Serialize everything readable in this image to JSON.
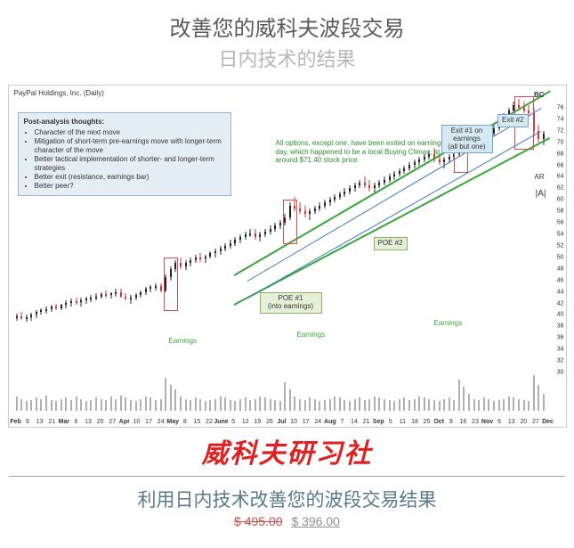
{
  "header": {
    "title": "改善您的威科夫波段交易",
    "subtitle": "日内技术的结果"
  },
  "chart": {
    "title_tl": "PayPal Holdings, Inc. (Daily)",
    "y_ticks": [
      30,
      32,
      34,
      36,
      38,
      40,
      42,
      44,
      46,
      48,
      50,
      52,
      54,
      56,
      58,
      60,
      62,
      64,
      66,
      68,
      70,
      72,
      74,
      76
    ],
    "y_min": 30,
    "y_max": 78,
    "x_labels": [
      "Feb",
      "6",
      "13",
      "21",
      "Mar",
      "6",
      "13",
      "20",
      "27",
      "Apr",
      "10",
      "17",
      "24",
      "May",
      "8",
      "15",
      "22",
      "June",
      "5",
      "12",
      "19",
      "26",
      "Jul",
      "10",
      "17",
      "24",
      "Aug",
      "7",
      "14",
      "21",
      "Sep",
      "5",
      "11",
      "18",
      "25",
      "Oct",
      "9",
      "16",
      "23",
      "Nov",
      "6",
      "13",
      "20",
      "27",
      "Dec"
    ],
    "background_color": "#ffffff",
    "grid_color": "#e8e8e8",
    "candle_up_color": "#222222",
    "candle_down_color": "#cc3333",
    "volume_color": "#b0b0b0",
    "channel_color_green": "#39a639",
    "channel_color_blue": "#3a78c9",
    "rect_color_red": "#d94c4c",
    "candles": [
      {
        "x": 0.5,
        "o": 39.5,
        "h": 40.2,
        "l": 39.0,
        "c": 39.8
      },
      {
        "x": 1.5,
        "o": 39.8,
        "h": 40.5,
        "l": 39.2,
        "c": 39.4
      },
      {
        "x": 2.5,
        "o": 39.4,
        "h": 40.0,
        "l": 38.8,
        "c": 39.6
      },
      {
        "x": 3.5,
        "o": 39.6,
        "h": 40.3,
        "l": 39.0,
        "c": 40.0
      },
      {
        "x": 4.5,
        "o": 40.0,
        "h": 40.8,
        "l": 39.5,
        "c": 40.5
      },
      {
        "x": 5.5,
        "o": 40.5,
        "h": 41.2,
        "l": 40.0,
        "c": 40.8
      },
      {
        "x": 6.5,
        "o": 40.8,
        "h": 41.5,
        "l": 40.2,
        "c": 41.0
      },
      {
        "x": 7.5,
        "o": 41.0,
        "h": 41.8,
        "l": 40.5,
        "c": 41.5
      },
      {
        "x": 8.5,
        "o": 41.5,
        "h": 42.0,
        "l": 40.8,
        "c": 41.2
      },
      {
        "x": 9.5,
        "o": 41.2,
        "h": 42.0,
        "l": 40.8,
        "c": 41.8
      },
      {
        "x": 10.5,
        "o": 41.8,
        "h": 42.5,
        "l": 41.2,
        "c": 42.0
      },
      {
        "x": 11.5,
        "o": 42.0,
        "h": 42.8,
        "l": 41.5,
        "c": 42.4
      },
      {
        "x": 12.5,
        "o": 42.4,
        "h": 43.0,
        "l": 41.8,
        "c": 42.2
      },
      {
        "x": 13.5,
        "o": 42.2,
        "h": 43.0,
        "l": 41.5,
        "c": 42.6
      },
      {
        "x": 14.5,
        "o": 42.6,
        "h": 43.2,
        "l": 42.0,
        "c": 42.8
      },
      {
        "x": 15.5,
        "o": 42.8,
        "h": 43.5,
        "l": 42.2,
        "c": 43.0
      },
      {
        "x": 16.5,
        "o": 43.0,
        "h": 43.8,
        "l": 42.5,
        "c": 43.2
      },
      {
        "x": 17.5,
        "o": 43.2,
        "h": 44.0,
        "l": 42.8,
        "c": 43.6
      },
      {
        "x": 18.5,
        "o": 43.6,
        "h": 44.2,
        "l": 43.0,
        "c": 43.4
      },
      {
        "x": 19.5,
        "o": 43.4,
        "h": 44.0,
        "l": 42.8,
        "c": 43.8
      },
      {
        "x": 20.5,
        "o": 43.8,
        "h": 44.5,
        "l": 43.2,
        "c": 44.0
      },
      {
        "x": 21.5,
        "o": 44.0,
        "h": 44.5,
        "l": 43.0,
        "c": 43.2
      },
      {
        "x": 22.5,
        "o": 43.2,
        "h": 43.8,
        "l": 42.5,
        "c": 42.8
      },
      {
        "x": 23.5,
        "o": 42.8,
        "h": 43.5,
        "l": 42.0,
        "c": 43.0
      },
      {
        "x": 24.5,
        "o": 43.0,
        "h": 43.8,
        "l": 42.5,
        "c": 43.5
      },
      {
        "x": 25.5,
        "o": 43.5,
        "h": 44.2,
        "l": 43.0,
        "c": 44.0
      },
      {
        "x": 26.5,
        "o": 44.0,
        "h": 44.8,
        "l": 43.5,
        "c": 44.5
      },
      {
        "x": 27.5,
        "o": 44.5,
        "h": 45.2,
        "l": 44.0,
        "c": 44.8
      },
      {
        "x": 28.5,
        "o": 44.8,
        "h": 45.5,
        "l": 44.2,
        "c": 45.0
      },
      {
        "x": 29.5,
        "o": 45.0,
        "h": 45.5,
        "l": 44.0,
        "c": 44.2
      },
      {
        "x": 30.5,
        "o": 44.2,
        "h": 47.0,
        "l": 44.0,
        "c": 46.5
      },
      {
        "x": 31.5,
        "o": 46.5,
        "h": 48.5,
        "l": 46.0,
        "c": 48.0
      },
      {
        "x": 32.5,
        "o": 48.0,
        "h": 49.5,
        "l": 47.5,
        "c": 49.0
      },
      {
        "x": 33.5,
        "o": 49.0,
        "h": 50.0,
        "l": 48.0,
        "c": 48.5
      },
      {
        "x": 34.5,
        "o": 48.5,
        "h": 49.5,
        "l": 47.8,
        "c": 49.0
      },
      {
        "x": 35.5,
        "o": 49.0,
        "h": 50.0,
        "l": 48.5,
        "c": 49.5
      },
      {
        "x": 36.5,
        "o": 49.5,
        "h": 50.5,
        "l": 49.0,
        "c": 50.0
      },
      {
        "x": 37.5,
        "o": 50.0,
        "h": 50.8,
        "l": 49.2,
        "c": 49.8
      },
      {
        "x": 38.5,
        "o": 49.8,
        "h": 50.5,
        "l": 49.0,
        "c": 50.2
      },
      {
        "x": 39.5,
        "o": 50.2,
        "h": 51.0,
        "l": 49.8,
        "c": 50.8
      },
      {
        "x": 40.5,
        "o": 50.8,
        "h": 51.5,
        "l": 50.0,
        "c": 51.0
      },
      {
        "x": 41.5,
        "o": 51.0,
        "h": 52.0,
        "l": 50.5,
        "c": 51.5
      },
      {
        "x": 42.5,
        "o": 51.5,
        "h": 52.5,
        "l": 51.0,
        "c": 52.0
      },
      {
        "x": 43.5,
        "o": 52.0,
        "h": 53.0,
        "l": 51.5,
        "c": 52.5
      },
      {
        "x": 44.5,
        "o": 52.5,
        "h": 53.5,
        "l": 52.0,
        "c": 53.0
      },
      {
        "x": 45.5,
        "o": 53.0,
        "h": 54.0,
        "l": 52.5,
        "c": 53.5
      },
      {
        "x": 46.5,
        "o": 53.5,
        "h": 54.5,
        "l": 53.0,
        "c": 54.0
      },
      {
        "x": 47.5,
        "o": 54.0,
        "h": 55.0,
        "l": 53.5,
        "c": 54.2
      },
      {
        "x": 48.5,
        "o": 54.2,
        "h": 55.0,
        "l": 53.0,
        "c": 53.5
      },
      {
        "x": 49.5,
        "o": 53.5,
        "h": 54.5,
        "l": 52.8,
        "c": 54.0
      },
      {
        "x": 50.5,
        "o": 54.0,
        "h": 55.0,
        "l": 53.5,
        "c": 54.5
      },
      {
        "x": 51.5,
        "o": 54.5,
        "h": 55.5,
        "l": 54.0,
        "c": 55.0
      },
      {
        "x": 52.5,
        "o": 55.0,
        "h": 56.0,
        "l": 54.5,
        "c": 55.5
      },
      {
        "x": 53.5,
        "o": 55.5,
        "h": 56.5,
        "l": 55.0,
        "c": 56.0
      },
      {
        "x": 54.5,
        "o": 56.0,
        "h": 57.5,
        "l": 55.5,
        "c": 57.0
      },
      {
        "x": 55.5,
        "o": 57.0,
        "h": 59.5,
        "l": 56.5,
        "c": 59.0
      },
      {
        "x": 56.5,
        "o": 59.0,
        "h": 60.5,
        "l": 58.0,
        "c": 58.5
      },
      {
        "x": 57.5,
        "o": 58.5,
        "h": 59.5,
        "l": 57.5,
        "c": 58.0
      },
      {
        "x": 58.5,
        "o": 58.0,
        "h": 59.0,
        "l": 57.0,
        "c": 57.5
      },
      {
        "x": 59.5,
        "o": 57.5,
        "h": 58.5,
        "l": 56.5,
        "c": 58.0
      },
      {
        "x": 60.5,
        "o": 58.0,
        "h": 59.0,
        "l": 57.5,
        "c": 58.5
      },
      {
        "x": 61.5,
        "o": 58.5,
        "h": 59.5,
        "l": 58.0,
        "c": 59.0
      },
      {
        "x": 62.5,
        "o": 59.0,
        "h": 60.0,
        "l": 58.5,
        "c": 59.5
      },
      {
        "x": 63.5,
        "o": 59.5,
        "h": 60.5,
        "l": 59.0,
        "c": 60.0
      },
      {
        "x": 64.5,
        "o": 60.0,
        "h": 61.0,
        "l": 59.5,
        "c": 60.5
      },
      {
        "x": 65.5,
        "o": 60.5,
        "h": 61.5,
        "l": 60.0,
        "c": 61.0
      },
      {
        "x": 66.5,
        "o": 61.0,
        "h": 62.0,
        "l": 60.5,
        "c": 61.5
      },
      {
        "x": 67.5,
        "o": 61.5,
        "h": 62.5,
        "l": 61.0,
        "c": 62.0
      },
      {
        "x": 68.5,
        "o": 62.0,
        "h": 63.0,
        "l": 61.5,
        "c": 62.5
      },
      {
        "x": 69.5,
        "o": 62.5,
        "h": 63.5,
        "l": 62.0,
        "c": 63.0
      },
      {
        "x": 70.5,
        "o": 63.0,
        "h": 64.0,
        "l": 62.0,
        "c": 62.5
      },
      {
        "x": 71.5,
        "o": 62.5,
        "h": 63.5,
        "l": 61.5,
        "c": 62.0
      },
      {
        "x": 72.5,
        "o": 62.0,
        "h": 63.0,
        "l": 61.0,
        "c": 62.5
      },
      {
        "x": 73.5,
        "o": 62.5,
        "h": 63.5,
        "l": 62.0,
        "c": 63.0
      },
      {
        "x": 74.5,
        "o": 63.0,
        "h": 64.0,
        "l": 62.5,
        "c": 63.5
      },
      {
        "x": 75.5,
        "o": 63.5,
        "h": 64.5,
        "l": 63.0,
        "c": 64.0
      },
      {
        "x": 76.5,
        "o": 64.0,
        "h": 65.0,
        "l": 63.5,
        "c": 64.5
      },
      {
        "x": 77.5,
        "o": 64.5,
        "h": 65.5,
        "l": 64.0,
        "c": 65.0
      },
      {
        "x": 78.5,
        "o": 65.0,
        "h": 66.0,
        "l": 64.5,
        "c": 65.5
      },
      {
        "x": 79.5,
        "o": 65.5,
        "h": 66.5,
        "l": 65.0,
        "c": 66.0
      },
      {
        "x": 80.5,
        "o": 66.0,
        "h": 67.0,
        "l": 65.5,
        "c": 66.5
      },
      {
        "x": 81.5,
        "o": 66.5,
        "h": 67.5,
        "l": 66.0,
        "c": 67.0
      },
      {
        "x": 82.5,
        "o": 67.0,
        "h": 68.0,
        "l": 66.5,
        "c": 67.5
      },
      {
        "x": 83.5,
        "o": 67.5,
        "h": 68.5,
        "l": 67.0,
        "c": 68.0
      },
      {
        "x": 84.5,
        "o": 68.0,
        "h": 69.0,
        "l": 66.5,
        "c": 67.0
      },
      {
        "x": 85.5,
        "o": 67.0,
        "h": 68.0,
        "l": 66.0,
        "c": 66.5
      },
      {
        "x": 86.5,
        "o": 66.5,
        "h": 67.5,
        "l": 65.5,
        "c": 67.0
      },
      {
        "x": 87.5,
        "o": 67.0,
        "h": 68.0,
        "l": 66.5,
        "c": 67.5
      },
      {
        "x": 88.5,
        "o": 67.5,
        "h": 68.5,
        "l": 67.0,
        "c": 68.0
      },
      {
        "x": 89.5,
        "o": 68.0,
        "h": 69.0,
        "l": 67.5,
        "c": 68.5
      },
      {
        "x": 90.5,
        "o": 68.5,
        "h": 70.0,
        "l": 68.0,
        "c": 69.5
      },
      {
        "x": 91.5,
        "o": 69.5,
        "h": 72.0,
        "l": 69.0,
        "c": 71.5
      },
      {
        "x": 92.5,
        "o": 71.5,
        "h": 73.0,
        "l": 70.5,
        "c": 71.0
      },
      {
        "x": 93.5,
        "o": 71.0,
        "h": 72.0,
        "l": 70.0,
        "c": 70.5
      },
      {
        "x": 94.5,
        "o": 70.5,
        "h": 71.5,
        "l": 69.5,
        "c": 71.0
      },
      {
        "x": 95.5,
        "o": 71.0,
        "h": 72.0,
        "l": 70.5,
        "c": 71.5
      },
      {
        "x": 96.5,
        "o": 71.5,
        "h": 73.0,
        "l": 71.0,
        "c": 72.5
      },
      {
        "x": 97.5,
        "o": 72.5,
        "h": 74.0,
        "l": 72.0,
        "c": 73.5
      },
      {
        "x": 98.5,
        "o": 73.5,
        "h": 75.0,
        "l": 73.0,
        "c": 74.5
      },
      {
        "x": 99.5,
        "o": 74.5,
        "h": 76.0,
        "l": 74.0,
        "c": 75.5
      },
      {
        "x": 100.5,
        "o": 75.5,
        "h": 77.0,
        "l": 75.0,
        "c": 76.5
      },
      {
        "x": 101.5,
        "o": 76.5,
        "h": 77.5,
        "l": 75.5,
        "c": 76.0
      },
      {
        "x": 102.5,
        "o": 76.0,
        "h": 77.0,
        "l": 75.0,
        "c": 75.5
      },
      {
        "x": 103.5,
        "o": 75.5,
        "h": 76.5,
        "l": 74.5,
        "c": 75.0
      },
      {
        "x": 104.5,
        "o": 75.0,
        "h": 76.0,
        "l": 71.0,
        "c": 72.0
      },
      {
        "x": 105.5,
        "o": 72.0,
        "h": 73.0,
        "l": 70.0,
        "c": 70.5
      },
      {
        "x": 106.5,
        "o": 70.5,
        "h": 72.0,
        "l": 69.5,
        "c": 71.5
      }
    ],
    "volumes": [
      12,
      10,
      8,
      9,
      11,
      10,
      13,
      9,
      8,
      10,
      11,
      9,
      12,
      10,
      8,
      9,
      11,
      10,
      9,
      12,
      10,
      13,
      11,
      9,
      8,
      10,
      12,
      11,
      9,
      10,
      28,
      22,
      18,
      12,
      10,
      9,
      11,
      10,
      8,
      9,
      10,
      12,
      11,
      9,
      8,
      10,
      11,
      9,
      10,
      12,
      11,
      10,
      9,
      8,
      24,
      18,
      12,
      10,
      9,
      11,
      10,
      8,
      9,
      10,
      12,
      11,
      9,
      8,
      10,
      11,
      9,
      10,
      12,
      11,
      10,
      9,
      8,
      10,
      11,
      9,
      10,
      12,
      11,
      10,
      9,
      8,
      10,
      11,
      9,
      26,
      20,
      14,
      10,
      9,
      11,
      10,
      8,
      9,
      10,
      12,
      11,
      10,
      9,
      8,
      30,
      22,
      14
    ],
    "annotations": {
      "post_analysis": {
        "title": "Post-analysis thoughts:",
        "items": [
          "Character of the next move",
          "Mitigation of short-term pre-earnings move with longer-term character of the move",
          "Better tactical implementation of shorter- and longer-term strategies",
          "Better exit (resistance, earnings bar)",
          "Better peer?"
        ],
        "bg": "#e6eef5",
        "border": "#9bb4cc"
      },
      "green_note": "All options, except one, have been exited on earnings day, which happened to be a local Buying Climax, at around $71.40 stock price",
      "exit1": {
        "l1": "Exit #1 on",
        "l2": "earnings",
        "l3": "(all but one)",
        "bg": "#d6e8f2",
        "border": "#6fa6c9"
      },
      "exit2": {
        "text": "Exit #2",
        "bg": "#d6e8f2",
        "border": "#6fa6c9"
      },
      "poe1": {
        "l1": "POE #1",
        "l2": "(into earnings)",
        "bg": "#e6f0d8",
        "border": "#8ab060"
      },
      "poe2": {
        "text": "POE #2",
        "bg": "#e6f0d8",
        "border": "#8ab060"
      },
      "earnings_label": "Earnings",
      "earnings_color": "#39a639",
      "bc_label": "BC",
      "ar_label": "AR",
      "a_label": "|A|"
    }
  },
  "brand": "威科夫研习社",
  "subheading": "利用日内技术改善您的波段交易结果",
  "price": {
    "old": "$ 495.00",
    "new": "$ 396.00"
  }
}
